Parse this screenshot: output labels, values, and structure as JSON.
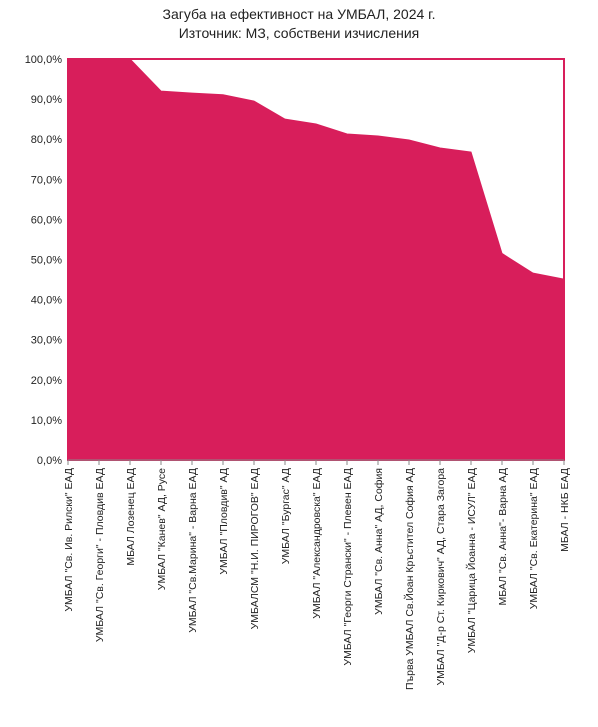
{
  "chart_data": {
    "type": "area",
    "title": "Загуба на ефективност на УМБАЛ, 2024 г.",
    "subtitle": "Източник: МЗ, собствени изчисления",
    "xlabel": "",
    "ylabel": "",
    "ylim": [
      0,
      100
    ],
    "yticks": [
      "0,0%",
      "10,0%",
      "20,0%",
      "30,0%",
      "40,0%",
      "50,0%",
      "60,0%",
      "70,0%",
      "80,0%",
      "90,0%",
      "100,0%"
    ],
    "grid": false,
    "legend": "none",
    "color": "#d81e5b",
    "categories": [
      "УМБАЛ \"Св. Ив. Рилски\" ЕАД",
      "УМБАЛ \"Св. Георги\" -  Пловдив ЕАД",
      "МБАЛ Лозенец ЕАД",
      "УМБАЛ \"Канев\" АД, Русе",
      "УМБАЛ \"Св.Марина\" -  Варна ЕАД",
      "УМБАЛ \"Пловдив\" АД",
      "УМБАЛСМ \"Н.И. ПИРОГОВ\" ЕАД",
      "УМБАЛ \"Бургас\" АД",
      "УМБАЛ \"Александровска\" ЕАД",
      "УМБАЛ \"Георги Странски\" -  Плевен ЕАД",
      "УМБАЛ \"Св. Анна\" АД, София",
      "Първа УМБАЛ Св.Йоан Кръстител София АД",
      "УМБАЛ \"Д-р Ст. Киркович\" АД, Стара Загора",
      "УМБАЛ \"Царица Йоанна - ИСУЛ\" ЕАД",
      "МБАЛ \"Св. Анна\"- Варна АД",
      "УМБАЛ \"Св. Екатерина\" ЕАД",
      "МБАЛ - НКБ ЕАД"
    ],
    "values": [
      100.0,
      100.0,
      100.0,
      92.0,
      91.5,
      91.1,
      89.5,
      85.0,
      83.8,
      81.3,
      80.8,
      79.8,
      77.8,
      76.8,
      51.5,
      46.6,
      45.1
    ]
  }
}
